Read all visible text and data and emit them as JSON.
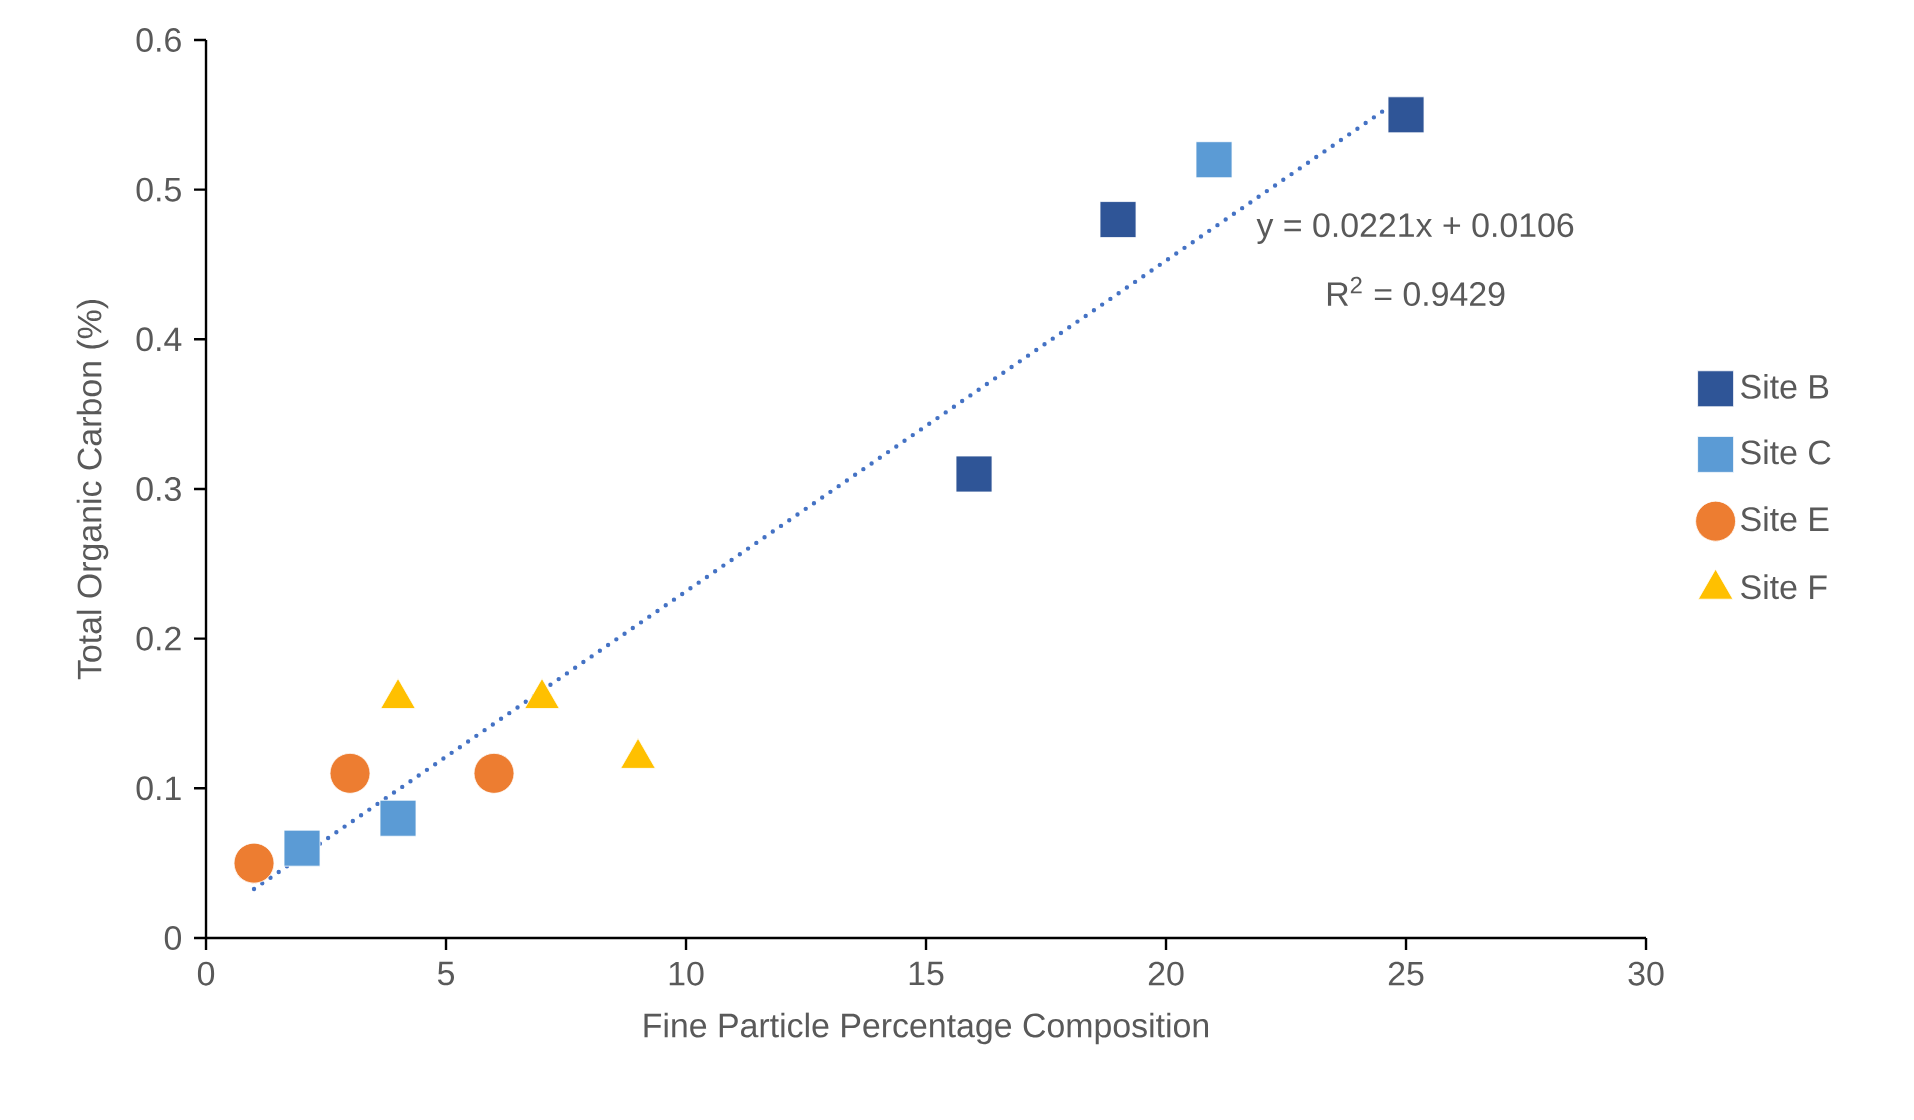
{
  "chart_data": {
    "type": "scatter",
    "xlabel": "Fine Particle Percentage Composition",
    "ylabel": "Total Organic Carbon (%)",
    "xlim": [
      0,
      30
    ],
    "ylim": [
      0,
      0.6
    ],
    "xticks": [
      0,
      5,
      10,
      15,
      20,
      25,
      30
    ],
    "yticks": [
      0,
      0.1,
      0.2,
      0.3,
      0.4,
      0.5,
      0.6
    ],
    "grid": false,
    "legend": "right",
    "annotations": [
      "y = 0.0221x + 0.0106",
      "R$^{2}$ = 0.9429"
    ],
    "series": [
      {
        "name": "Site B",
        "color": "#2f5597",
        "marker": "square",
        "x": [
          16,
          19,
          25
        ],
        "values": [
          0.31,
          0.48,
          0.55
        ]
      },
      {
        "name": "Site C",
        "color": "#5b9bd5",
        "marker": "square",
        "x": [
          2,
          4,
          21
        ],
        "values": [
          0.06,
          0.08,
          0.52
        ]
      },
      {
        "name": "Site E",
        "color": "#ed7d31",
        "marker": "circle",
        "x": [
          1,
          3,
          6
        ],
        "values": [
          0.05,
          0.11,
          0.11
        ]
      },
      {
        "name": "Site F",
        "color": "#ffc000",
        "marker": "triangle",
        "x": [
          4,
          7,
          9
        ],
        "values": [
          0.16,
          0.16,
          0.12
        ]
      },
      {
        "type": "line",
        "color": "#4472c4",
        "line_style": "dotted",
        "marker": "none",
        "x": [
          1,
          25
        ],
        "values": [
          0.0327,
          0.5631
        ]
      }
    ]
  }
}
